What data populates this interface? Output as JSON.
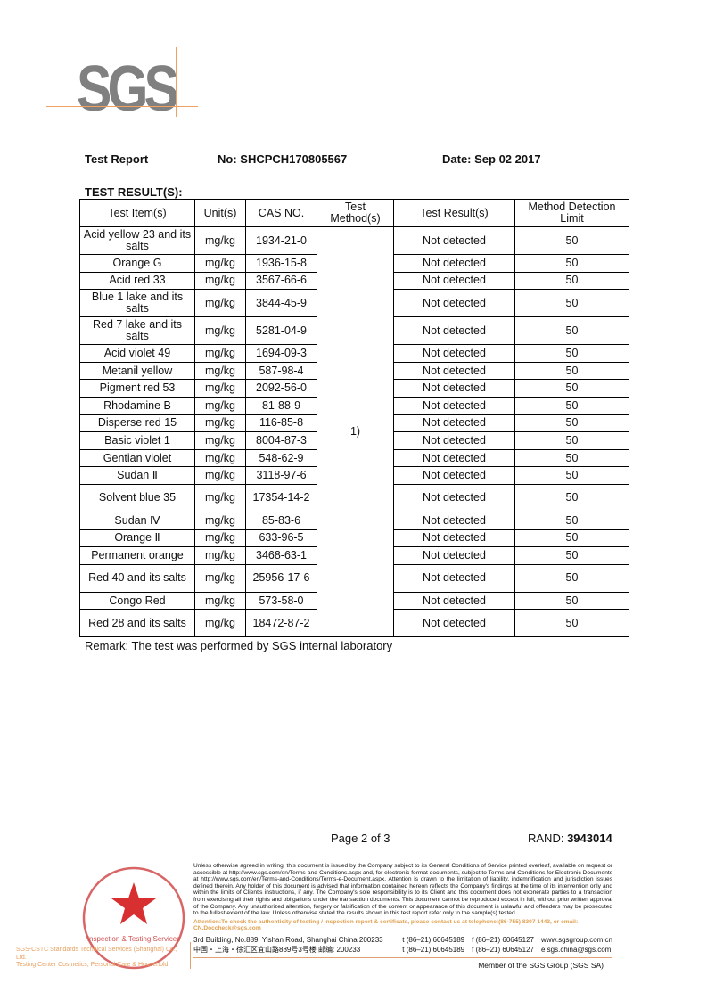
{
  "logo": "SGS",
  "header": {
    "report": "Test Report",
    "no": "No:  SHCPCH170805567",
    "date": "Date: Sep 02 2017"
  },
  "section_title": "TEST RESULT(S):",
  "table": {
    "headers": [
      "Test Item(s)",
      "Unit(s)",
      "CAS NO.",
      "Test Method(s)",
      "Test Result(s)",
      "Method Detection Limit"
    ],
    "method": "1)",
    "rows": [
      {
        "item": "Acid yellow 23 and its salts",
        "unit": "mg/kg",
        "cas": "1934-21-0",
        "result": "Not detected",
        "mdl": "50"
      },
      {
        "item": "Orange G",
        "unit": "mg/kg",
        "cas": "1936-15-8",
        "result": "Not detected",
        "mdl": "50"
      },
      {
        "item": "Acid red 33",
        "unit": "mg/kg",
        "cas": "3567-66-6",
        "result": "Not detected",
        "mdl": "50"
      },
      {
        "item": "Blue 1 lake and its salts",
        "unit": "mg/kg",
        "cas": "3844-45-9",
        "result": "Not detected",
        "mdl": "50"
      },
      {
        "item": "Red 7 lake and its salts",
        "unit": "mg/kg",
        "cas": "5281-04-9",
        "result": "Not detected",
        "mdl": "50"
      },
      {
        "item": "Acid violet 49",
        "unit": "mg/kg",
        "cas": "1694-09-3",
        "result": "Not detected",
        "mdl": "50"
      },
      {
        "item": "Metanil yellow",
        "unit": "mg/kg",
        "cas": "587-98-4",
        "result": "Not detected",
        "mdl": "50"
      },
      {
        "item": "Pigment red 53",
        "unit": "mg/kg",
        "cas": "2092-56-0",
        "result": "Not detected",
        "mdl": "50"
      },
      {
        "item": "Rhodamine B",
        "unit": "mg/kg",
        "cas": "81-88-9",
        "result": "Not detected",
        "mdl": "50"
      },
      {
        "item": "Disperse red 15",
        "unit": "mg/kg",
        "cas": "116-85-8",
        "result": "Not detected",
        "mdl": "50"
      },
      {
        "item": "Basic violet 1",
        "unit": "mg/kg",
        "cas": "8004-87-3",
        "result": "Not detected",
        "mdl": "50"
      },
      {
        "item": "Gentian violet",
        "unit": "mg/kg",
        "cas": "548-62-9",
        "result": "Not detected",
        "mdl": "50"
      },
      {
        "item": "Sudan Ⅱ",
        "unit": "mg/kg",
        "cas": "3118-97-6",
        "result": "Not detected",
        "mdl": "50"
      },
      {
        "item": "Solvent blue 35",
        "unit": "mg/kg",
        "cas": "17354-14-2",
        "result": "Not detected",
        "mdl": "50"
      },
      {
        "item": "Sudan Ⅳ",
        "unit": "mg/kg",
        "cas": "85-83-6",
        "result": "Not detected",
        "mdl": "50"
      },
      {
        "item": "Orange Ⅱ",
        "unit": "mg/kg",
        "cas": "633-96-5",
        "result": "Not detected",
        "mdl": "50"
      },
      {
        "item": "Permanent orange",
        "unit": "mg/kg",
        "cas": "3468-63-1",
        "result": "Not detected",
        "mdl": "50"
      },
      {
        "item": "Red 40 and its salts",
        "unit": "mg/kg",
        "cas": "25956-17-6",
        "result": "Not detected",
        "mdl": "50"
      },
      {
        "item": "Congo Red",
        "unit": "mg/kg",
        "cas": "573-58-0",
        "result": "Not detected",
        "mdl": "50"
      },
      {
        "item": "Red 28 and its salts",
        "unit": "mg/kg",
        "cas": "18472-87-2",
        "result": "Not detected",
        "mdl": "50"
      }
    ]
  },
  "remark": "Remark: The test was performed by SGS internal laboratory",
  "page": "Page 2 of 3",
  "rand_label": "RAND: ",
  "rand_value": "3943014",
  "footer": {
    "legal": "Unless otherwise agreed in writing, this document is issued by the Company subject to its General Conditions of Service printed overleaf, available on request or accessible at http://www.sgs.com/en/Terms-and-Conditions.aspx and, for electronic format documents, subject to Terms and Conditions for Electronic Documents at http://www.sgs.com/en/Terms-and-Conditions/Terms-e-Document.aspx. Attention is drawn to the limitation of liability, indemnification and jurisdiction issues defined therein. Any holder of this document is advised that information contained hereon reflects the Company's findings at the time of its intervention only and within the limits of Client's instructions, if any. The Company's sole responsibility is to its Client and this document does not exonerate parties to a transaction from exercising all their rights and obligations under the transaction documents. This document cannot be reproduced except in full, without prior written approval of the Company. Any unauthorized alteration, forgery or falsification of the content or appearance of this document is unlawful and offenders may be prosecuted to the fullest extent of the law. Unless otherwise stated the results shown in this test report refer only to the sample(s) tested .",
    "attention": "Attention:To check the authenticity of testing / inspection report & certificate, please contact us at telephone:(86-755) 8307 1443, or email: CN.Doccheck@sgs.com",
    "addr_en": "3rd Building, No.889, Yishan Road, Shanghai China 200233",
    "addr_cn": "中国・上海・徐汇区宜山路889号3号楼  邮编: 200233",
    "tel1": "t (86–21) 60645189",
    "fax1": "f (86–21) 60645127",
    "web": "www.sgsgroup.com.cn",
    "tel2": "t (86–21) 60645189",
    "fax2": "f (86–21) 60645127",
    "email": "e  sgs.china@sgs.com",
    "member": "Member of the SGS Group (SGS SA)",
    "lab1": "SGS-CSTC Standards Technical Services (Shanghai) Co., Ltd.",
    "lab2": "Testing Center Cosmetics, Personal Care & Household",
    "stamp_text": "Inspection & Testing Services"
  }
}
